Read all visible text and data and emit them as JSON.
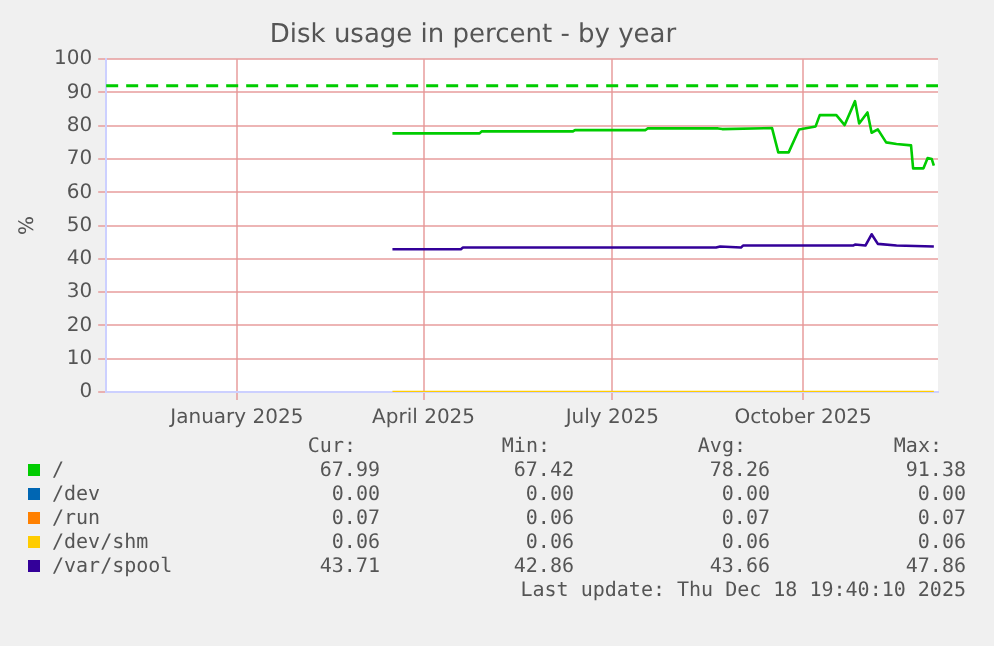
{
  "chart_data": {
    "type": "line",
    "title": "Disk usage in percent - by year",
    "ylabel": "%",
    "xlim": [
      "2024-11-14",
      "2025-12-20"
    ],
    "xticks": [
      {
        "value": "2025-01-16",
        "label": "January 2025"
      },
      {
        "value": "2025-04-16",
        "label": "April 2025"
      },
      {
        "value": "2025-07-16",
        "label": "July 2025"
      },
      {
        "value": "2025-10-16",
        "label": "October 2025"
      }
    ],
    "ylim": [
      0,
      100
    ],
    "yticks": [
      0,
      10,
      20,
      30,
      40,
      50,
      60,
      70,
      80,
      90,
      100
    ],
    "grid": true,
    "legend": "bottom",
    "line_style": "solid",
    "marker": "none",
    "ref_lines": [
      {
        "axis": "y",
        "value": 92,
        "color": "#00cc00",
        "line_style": "dashed"
      }
    ],
    "series": [
      {
        "name": "/",
        "color": "#00cc00",
        "x": [
          "2025-04-01",
          "2025-05-13",
          "2025-05-14",
          "2025-06-27",
          "2025-06-28",
          "2025-08-01",
          "2025-08-02",
          "2025-09-05",
          "2025-09-07",
          "2025-10-01",
          "2025-10-04",
          "2025-10-09",
          "2025-10-14",
          "2025-10-22",
          "2025-10-24",
          "2025-11-01",
          "2025-11-05",
          "2025-11-10",
          "2025-11-12",
          "2025-11-16",
          "2025-11-18",
          "2025-11-21",
          "2025-11-25",
          "2025-11-30",
          "2025-12-07",
          "2025-12-08",
          "2025-12-13",
          "2025-12-15",
          "2025-12-17",
          "2025-12-18"
        ],
        "values": [
          77.7,
          77.7,
          78.3,
          78.3,
          78.7,
          78.7,
          79.2,
          79.2,
          79.0,
          79.3,
          72.0,
          72.0,
          78.9,
          79.8,
          83.2,
          83.2,
          80.2,
          87.4,
          80.7,
          84.0,
          77.9,
          78.9,
          75.0,
          74.5,
          74.1,
          67.2,
          67.2,
          70.3,
          70.0,
          68.0
        ]
      },
      {
        "name": "/dev",
        "color": "#0066b3",
        "values": [
          null,
          null
        ]
      },
      {
        "name": "/run",
        "color": "#ff8000",
        "values": [
          null,
          null
        ]
      },
      {
        "name": "/dev/shm",
        "color": "#ffcc00",
        "x": [
          "2025-04-01",
          "2025-12-18"
        ],
        "values": [
          0,
          0
        ]
      },
      {
        "name": "/var/spool",
        "color": "#330099",
        "x": [
          "2025-04-01",
          "2025-05-04",
          "2025-05-05",
          "2025-09-04",
          "2025-09-06",
          "2025-09-16",
          "2025-09-17",
          "2025-11-09",
          "2025-11-10",
          "2025-11-15",
          "2025-11-18",
          "2025-11-21",
          "2025-11-30",
          "2025-12-18"
        ],
        "values": [
          42.9,
          42.9,
          43.4,
          43.4,
          43.7,
          43.4,
          44.0,
          44.0,
          44.3,
          44.0,
          47.4,
          44.5,
          44.0,
          43.7
        ]
      }
    ],
    "annotations": [
      "Cur:",
      "Min:",
      "Avg:",
      "Max:",
      "67.99",
      "67.42",
      "78.26",
      "91.38",
      "0.00",
      "0.00",
      "0.00",
      "0.00",
      "0.07",
      "0.06",
      "0.07",
      "0.07",
      "0.06",
      "0.06",
      "0.06",
      "0.06",
      "43.71",
      "42.86",
      "43.66",
      "47.86",
      "Last update: Thu Dec 18 19:40:10 2025"
    ]
  }
}
